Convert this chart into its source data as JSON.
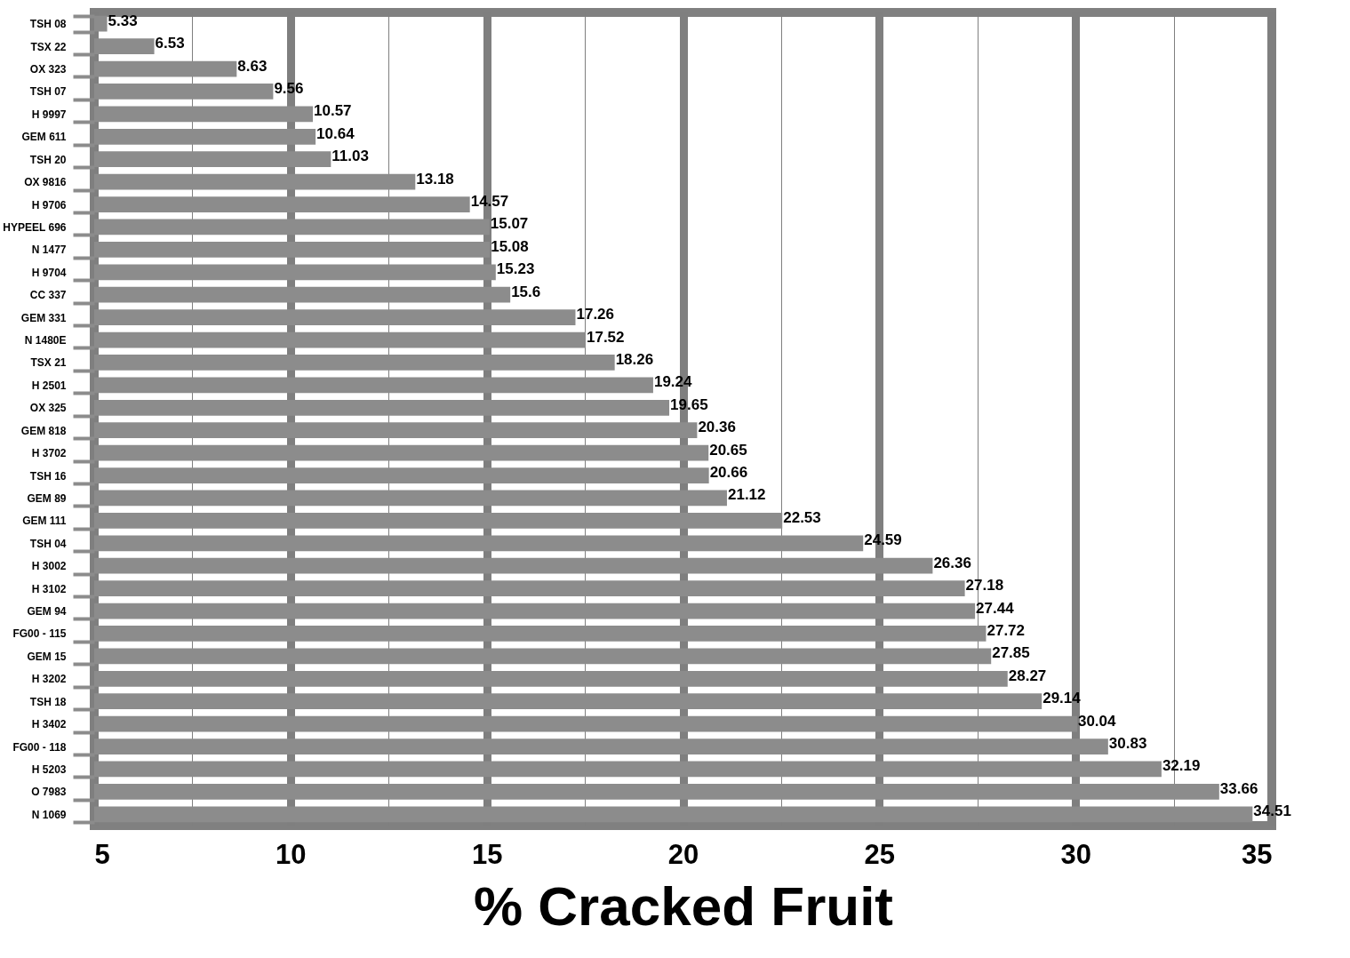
{
  "chart_data": {
    "type": "bar",
    "orientation": "horizontal",
    "xlabel": "% Cracked Fruit",
    "categories": [
      "TSH 08",
      "TSX 22",
      "OX 323",
      "TSH 07",
      "H 9997",
      "GEM 611",
      "TSH 20",
      "OX 9816",
      "H 9706",
      "HYPEEL 696",
      "N 1477",
      "H 9704",
      "CC 337",
      "GEM 331",
      "N 1480E",
      "TSX 21",
      "H 2501",
      "OX 325",
      "GEM 818",
      "H 3702",
      "TSH 16",
      "GEM 89",
      "GEM 111",
      "TSH 04",
      "H 3002",
      "H 3102",
      "GEM 94",
      "FG00 - 115",
      "GEM 15",
      "H 3202",
      "TSH 18",
      "H 3402",
      "FG00 - 118",
      "H 5203",
      "O 7983",
      "N 1069"
    ],
    "values": [
      5.33,
      6.53,
      8.63,
      9.56,
      10.57,
      10.64,
      11.03,
      13.18,
      14.57,
      15.07,
      15.08,
      15.23,
      15.6,
      17.26,
      17.52,
      18.26,
      19.24,
      19.65,
      20.36,
      20.65,
      20.66,
      21.12,
      22.53,
      24.59,
      26.36,
      27.18,
      27.44,
      27.72,
      27.85,
      28.27,
      29.14,
      30.04,
      30.83,
      32.19,
      33.66,
      34.51
    ],
    "color": "#8c8c8c",
    "xlim": [
      5,
      35
    ],
    "xticks": [
      5,
      {
        "value": 7.5,
        "label": null
      },
      10,
      {
        "value": 12.5,
        "label": null
      },
      15,
      {
        "value": 17.5,
        "label": null
      },
      20,
      {
        "value": 22.5,
        "label": null
      },
      25,
      {
        "value": 27.5,
        "label": null
      },
      30,
      {
        "value": 32.5,
        "label": null
      },
      35
    ],
    "grid": "x",
    "data_labels": true
  }
}
